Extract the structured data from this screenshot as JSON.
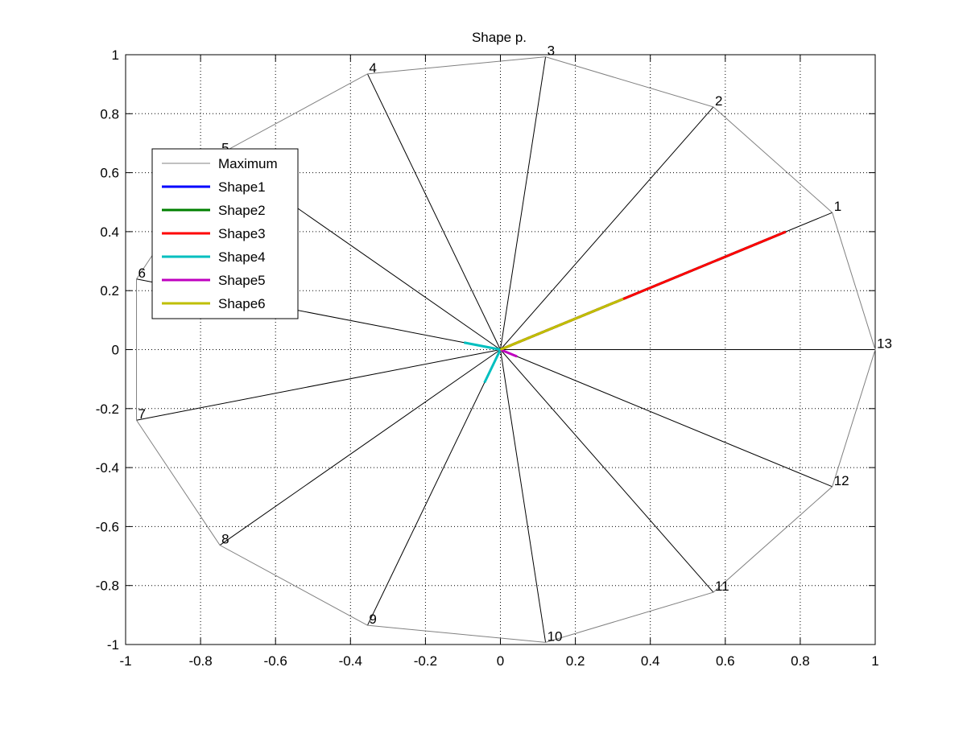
{
  "chart_data": {
    "type": "radar",
    "title": "Shape p.",
    "xlabel": "",
    "ylabel": "",
    "xlim": [
      -1,
      1
    ],
    "ylim": [
      -1,
      1
    ],
    "xticks": [
      "-1",
      "-0.8",
      "-0.6",
      "-0.4",
      "-0.2",
      "0",
      "0.2",
      "0.4",
      "0.6",
      "0.8",
      "1"
    ],
    "yticks": [
      "1",
      "0.8",
      "0.6",
      "0.4",
      "0.2",
      "0",
      "-0.2",
      "-0.4",
      "-0.6",
      "-0.8",
      "-1"
    ],
    "grid": true,
    "legend_position": "top-left",
    "spokes": [
      {
        "label": "1",
        "angle_deg": 27.69
      },
      {
        "label": "2",
        "angle_deg": 55.38
      },
      {
        "label": "3",
        "angle_deg": 83.08
      },
      {
        "label": "4",
        "angle_deg": 110.77
      },
      {
        "label": "5",
        "angle_deg": 138.46
      },
      {
        "label": "6",
        "angle_deg": 166.15
      },
      {
        "label": "7",
        "angle_deg": 193.85
      },
      {
        "label": "8",
        "angle_deg": 221.54
      },
      {
        "label": "9",
        "angle_deg": 249.23
      },
      {
        "label": "10",
        "angle_deg": 276.92
      },
      {
        "label": "11",
        "angle_deg": 304.62
      },
      {
        "label": "12",
        "angle_deg": 332.31
      },
      {
        "label": "13",
        "angle_deg": 0
      }
    ],
    "series": [
      {
        "name": "Maximum",
        "color": "#808080",
        "values": [
          1,
          1,
          1,
          1,
          1,
          1,
          1,
          1,
          1,
          1,
          1,
          1,
          1
        ]
      },
      {
        "name": "Shape1",
        "color": "#0000ff",
        "values": [
          0.86,
          0,
          0,
          0,
          0,
          0,
          0,
          0,
          0,
          0,
          0,
          0,
          0
        ]
      },
      {
        "name": "Shape2",
        "color": "#008000",
        "values": [
          0.86,
          0,
          0,
          0,
          0,
          0,
          0,
          0,
          0,
          0,
          0,
          0,
          0
        ]
      },
      {
        "name": "Shape3",
        "color": "#ff0000",
        "values": [
          0.86,
          0,
          0,
          0,
          0,
          0,
          0,
          0,
          0,
          0,
          0,
          0,
          0
        ]
      },
      {
        "name": "Shape4",
        "color": "#00bfbf",
        "values": [
          0,
          0,
          0,
          0,
          0,
          0.1,
          0,
          0,
          0.12,
          0,
          0,
          0,
          0
        ]
      },
      {
        "name": "Shape5",
        "color": "#bf00bf",
        "values": [
          0,
          0,
          0,
          0,
          0,
          0,
          0,
          0,
          0,
          0,
          0,
          0.05,
          0
        ]
      },
      {
        "name": "Shape6",
        "color": "#bfbf00",
        "values": [
          0.37,
          0,
          0,
          0,
          0,
          0,
          0,
          0,
          0,
          0,
          0,
          0,
          0
        ]
      }
    ]
  }
}
